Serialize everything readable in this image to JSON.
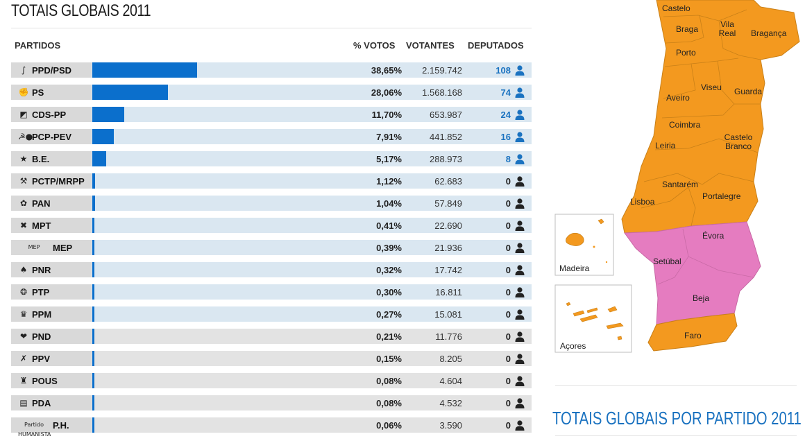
{
  "page": {
    "title": "TOTAIS GLOBAIS 2011",
    "subtitle": "TOTAIS GLOBAIS POR PARTIDO 2011"
  },
  "table": {
    "headers": {
      "party": "PARTIDOS",
      "pct": "% VOTOS",
      "voters": "VOTANTES",
      "seats": "DEPUTADOS"
    },
    "rows": [
      {
        "party": "PPD/PSD",
        "logo": "psd-logo",
        "pct_text": "38,65%",
        "pct": 38.65,
        "voters": "2.159.742",
        "seats": "108"
      },
      {
        "party": "PS",
        "logo": "ps-logo",
        "pct_text": "28,06%",
        "pct": 28.06,
        "voters": "1.568.168",
        "seats": "74"
      },
      {
        "party": "CDS-PP",
        "logo": "cds-logo",
        "pct_text": "11,70%",
        "pct": 11.7,
        "voters": "653.987",
        "seats": "24"
      },
      {
        "party": "PCP-PEV",
        "logo": "pcp-pev-logo",
        "pct_text": "7,91%",
        "pct": 7.91,
        "voters": "441.852",
        "seats": "16"
      },
      {
        "party": "B.E.",
        "logo": "be-logo",
        "pct_text": "5,17%",
        "pct": 5.17,
        "voters": "288.973",
        "seats": "8"
      },
      {
        "party": "PCTP/MRPP",
        "logo": "pctp-logo",
        "pct_text": "1,12%",
        "pct": 1.12,
        "voters": "62.683",
        "seats": "0"
      },
      {
        "party": "PAN",
        "logo": "pan-logo",
        "pct_text": "1,04%",
        "pct": 1.04,
        "voters": "57.849",
        "seats": "0"
      },
      {
        "party": "MPT",
        "logo": "mpt-logo",
        "pct_text": "0,41%",
        "pct": 0.41,
        "voters": "22.690",
        "seats": "0"
      },
      {
        "party": "MEP",
        "logo": "mep-logo",
        "logo_text": "MEP",
        "pct_text": "0,39%",
        "pct": 0.39,
        "voters": "21.936",
        "seats": "0"
      },
      {
        "party": "PNR",
        "logo": "pnr-logo",
        "pct_text": "0,32%",
        "pct": 0.32,
        "voters": "17.742",
        "seats": "0"
      },
      {
        "party": "PTP",
        "logo": "ptp-logo",
        "pct_text": "0,30%",
        "pct": 0.3,
        "voters": "16.811",
        "seats": "0"
      },
      {
        "party": "PPM",
        "logo": "ppm-logo",
        "pct_text": "0,27%",
        "pct": 0.27,
        "voters": "15.081",
        "seats": "0"
      },
      {
        "party": "PND",
        "logo": "pnd-logo",
        "pct_text": "0,21%",
        "pct": 0.21,
        "voters": "11.776",
        "seats": "0"
      },
      {
        "party": "PPV",
        "logo": "ppv-logo",
        "pct_text": "0,15%",
        "pct": 0.15,
        "voters": "8.205",
        "seats": "0"
      },
      {
        "party": "POUS",
        "logo": "pous-logo",
        "pct_text": "0,08%",
        "pct": 0.08,
        "voters": "4.604",
        "seats": "0"
      },
      {
        "party": "PDA",
        "logo": "pda-logo",
        "pct_text": "0,08%",
        "pct": 0.08,
        "voters": "4.532",
        "seats": "0"
      },
      {
        "party": "P.H.",
        "logo": "ph-logo",
        "logo_text": "Partido HUMANISTA",
        "pct_text": "0,06%",
        "pct": 0.06,
        "voters": "3.590",
        "seats": "0"
      }
    ]
  },
  "map": {
    "regions": {
      "viana": "Castelo",
      "braga": "Braga",
      "vilareal": "Vila Real",
      "braganca": "Bragança",
      "porto": "Porto",
      "aveiro": "Aveiro",
      "viseu": "Viseu",
      "guarda": "Guarda",
      "coimbra": "Coimbra",
      "castelobranco": "Castelo Branco",
      "leiria": "Leiria",
      "santarem": "Santarém",
      "portalegre": "Portalegre",
      "lisboa": "Lisboa",
      "evora": "Évora",
      "setubal": "Setúbal",
      "beja": "Beja",
      "faro": "Faro"
    },
    "insets": {
      "madeira": "Madeira",
      "azores": "Açores"
    },
    "colors": {
      "psd": "#f3991f",
      "ps": "#e57cc0",
      "border": "#c98018",
      "bar": "#0b6fcc",
      "seat_blue": "#1a72c0"
    }
  }
}
